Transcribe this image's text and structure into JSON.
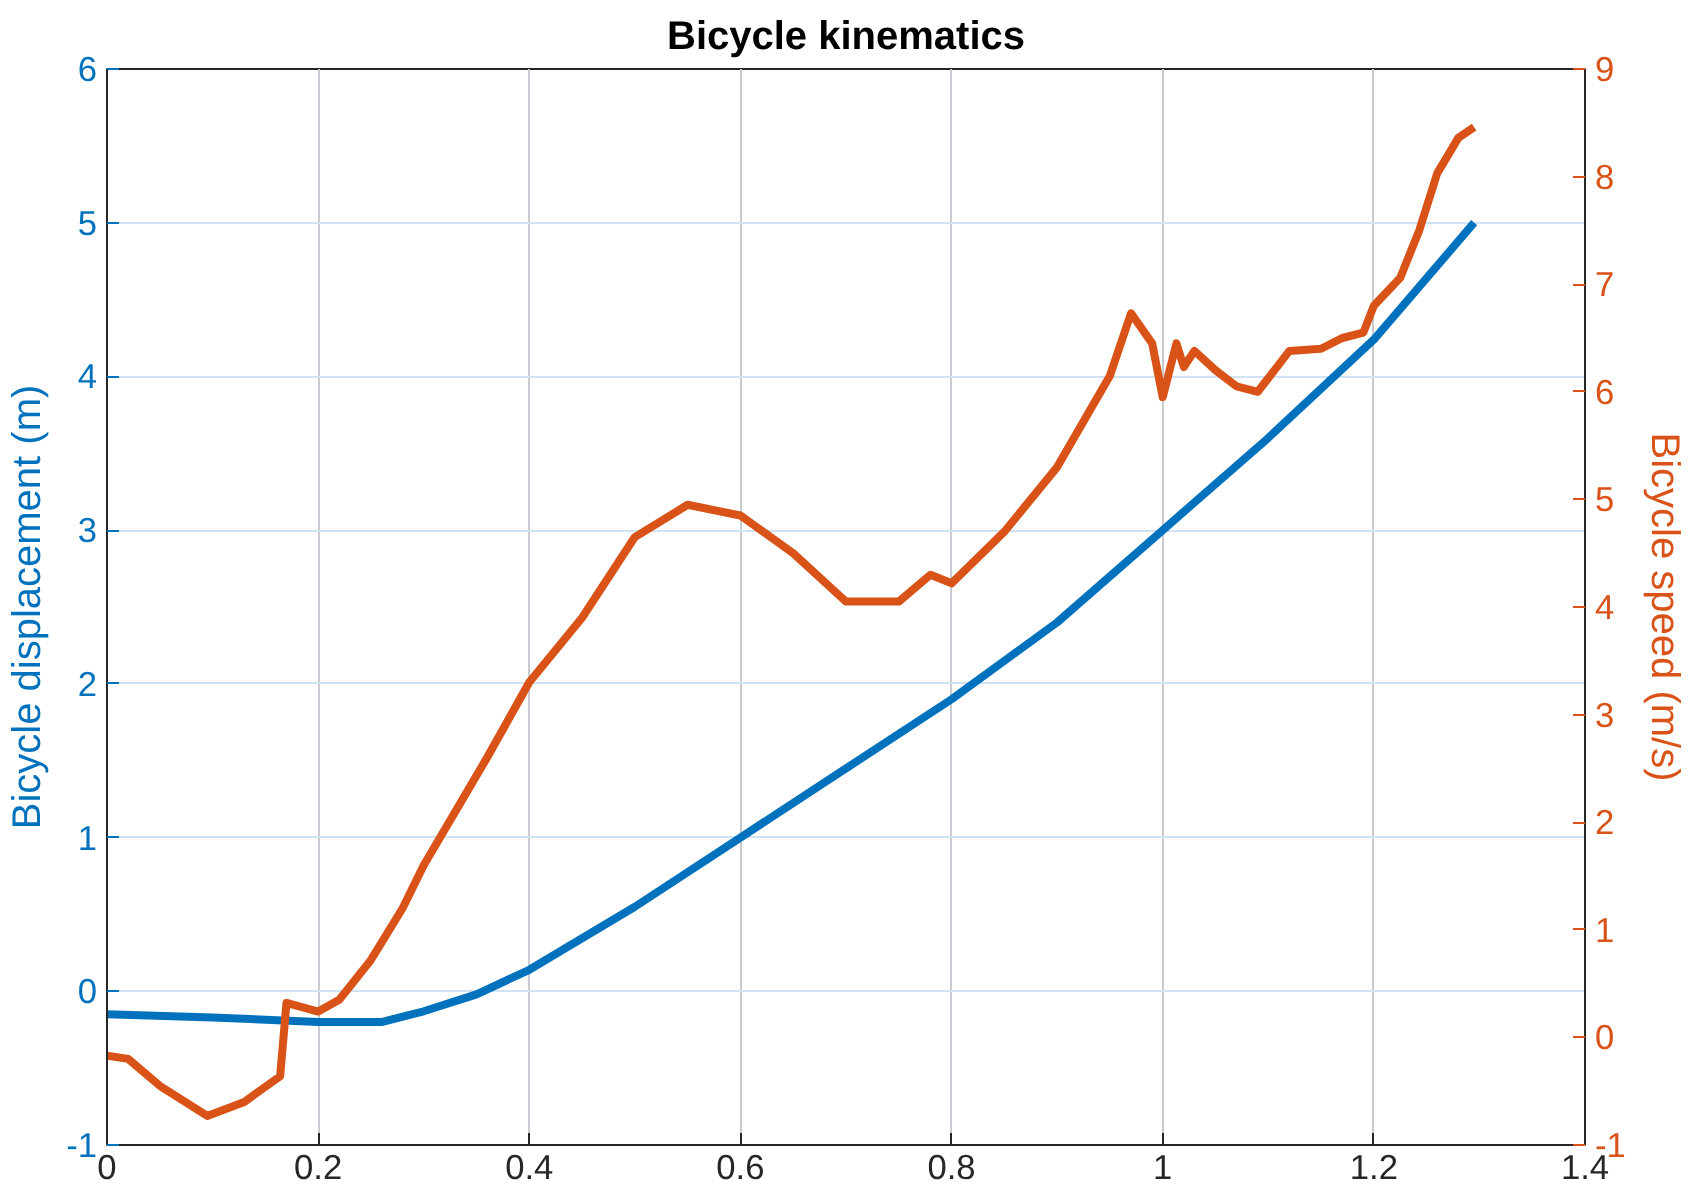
{
  "chart_data": {
    "type": "line",
    "title": "Bicycle kinematics",
    "ylabel": "Bicycle displacement (m)",
    "y2label": "Bicycle speed (m/s)",
    "xlim": [
      0,
      1.4
    ],
    "xticks": [
      0,
      0.2,
      0.4,
      0.6,
      0.8,
      1,
      1.2,
      1.4
    ],
    "ylim": [
      -1,
      6
    ],
    "yticks": [
      -1,
      0,
      1,
      2,
      3,
      4,
      5,
      6
    ],
    "y2lim": [
      -1,
      9
    ],
    "y2ticks": [
      -1,
      0,
      1,
      2,
      3,
      4,
      5,
      6,
      7,
      8,
      9
    ],
    "grid": true,
    "line_style": "solid",
    "marker": "none",
    "series": [
      {
        "color": "#0072bd",
        "x": [
          0,
          0.1,
          0.2,
          0.26,
          0.3,
          0.35,
          0.4,
          0.5,
          0.6,
          0.7,
          0.8,
          0.9,
          1.0,
          1.1,
          1.2,
          1.295
        ],
        "values": [
          -0.15,
          -0.17,
          -0.2,
          -0.2,
          -0.13,
          -0.02,
          0.14,
          0.55,
          1.0,
          1.45,
          1.9,
          2.4,
          3.0,
          3.6,
          4.24,
          5.0
        ]
      },
      {
        "color": "#d95319",
        "axis": "y2",
        "x": [
          0,
          0.02,
          0.05,
          0.095,
          0.13,
          0.164,
          0.17,
          0.2,
          0.22,
          0.25,
          0.28,
          0.3,
          0.33,
          0.36,
          0.4,
          0.45,
          0.5,
          0.55,
          0.6,
          0.65,
          0.7,
          0.75,
          0.78,
          0.8,
          0.85,
          0.9,
          0.95,
          0.97,
          0.99,
          1.0,
          1.013,
          1.02,
          1.03,
          1.05,
          1.07,
          1.09,
          1.12,
          1.15,
          1.17,
          1.19,
          1.2,
          1.225,
          1.243,
          1.26,
          1.28,
          1.295
        ],
        "values": [
          -0.17,
          -0.2,
          -0.45,
          -0.73,
          -0.6,
          -0.36,
          0.32,
          0.24,
          0.35,
          0.72,
          1.2,
          1.6,
          2.1,
          2.6,
          3.3,
          3.9,
          4.65,
          4.95,
          4.85,
          4.5,
          4.05,
          4.05,
          4.3,
          4.22,
          4.7,
          5.3,
          6.15,
          6.73,
          6.45,
          5.95,
          6.45,
          6.23,
          6.38,
          6.2,
          6.05,
          6.0,
          6.38,
          6.4,
          6.5,
          6.55,
          6.8,
          7.06,
          7.5,
          8.03,
          8.36,
          8.46
        ]
      }
    ]
  }
}
